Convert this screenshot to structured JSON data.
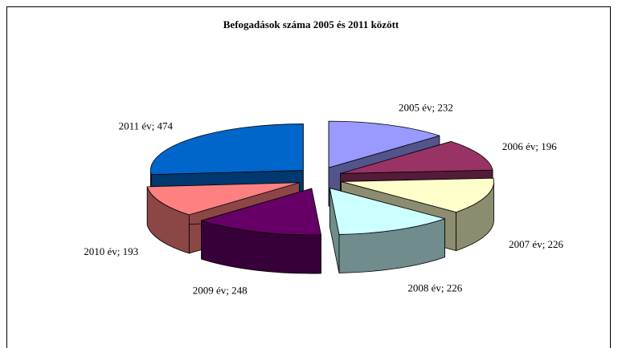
{
  "chart_data": {
    "type": "pie3d",
    "title": "Befogadások száma 2005 és 2011 között",
    "categories": [
      "2005 év",
      "2006 év",
      "2007 év",
      "2008 év",
      "2009 év",
      "2010 év",
      "2011 év"
    ],
    "values": [
      232,
      196,
      226,
      226,
      248,
      193,
      474
    ],
    "value_labels": [
      "2005 év; 232",
      "2006 év; 196",
      "2007 év; 226",
      "2008 év; 226",
      "2009 év; 248",
      "2010 év; 193",
      "2011 év; 474"
    ],
    "colors": [
      "#9999ff",
      "#993366",
      "#ffffcc",
      "#ccffff",
      "#660066",
      "#ff8080",
      "#0066cc"
    ]
  }
}
